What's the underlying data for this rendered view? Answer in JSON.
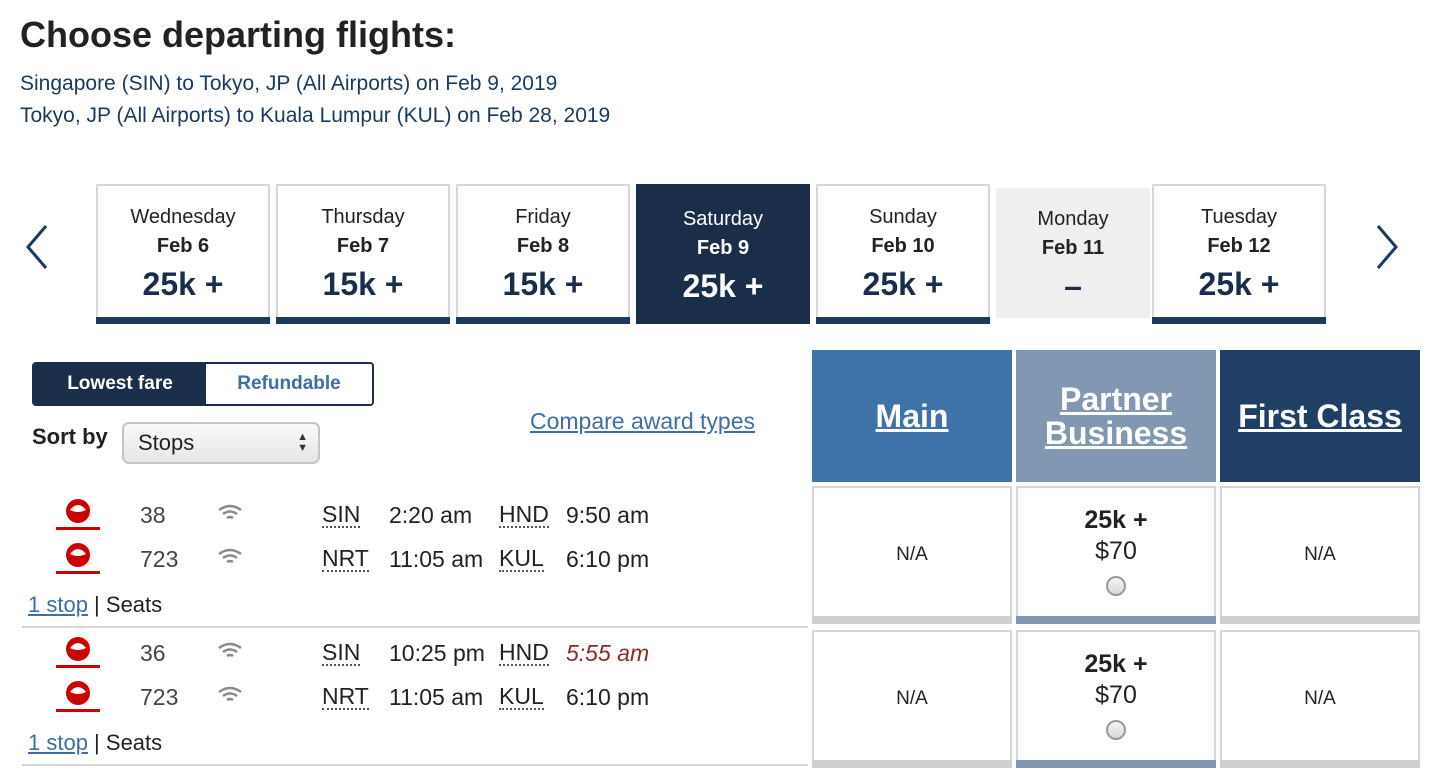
{
  "page": {
    "title": "Choose departing flights:",
    "routes": [
      "Singapore (SIN) to Tokyo, JP (All Airports) on Feb 9, 2019",
      "Tokyo, JP (All Airports) to Kuala Lumpur (KUL) on Feb 28, 2019"
    ]
  },
  "calendar": {
    "prev_icon": "chevron-left-icon",
    "next_icon": "chevron-right-icon",
    "days": [
      {
        "weekday": "Wednesday",
        "date": "Feb 6",
        "price": "25k +"
      },
      {
        "weekday": "Thursday",
        "date": "Feb 7",
        "price": "15k +"
      },
      {
        "weekday": "Friday",
        "date": "Feb 8",
        "price": "15k +"
      },
      {
        "weekday": "Saturday",
        "date": "Feb 9",
        "price": "25k +",
        "selected": true
      },
      {
        "weekday": "Sunday",
        "date": "Feb 10",
        "price": "25k +"
      },
      {
        "weekday": "Monday",
        "date": "Feb 11",
        "price": "–",
        "available": false
      },
      {
        "weekday": "Tuesday",
        "date": "Feb 12",
        "price": "25k +"
      }
    ]
  },
  "filters": {
    "fare_toggle": [
      "Lowest fare",
      "Refundable"
    ],
    "fare_selected": "Lowest fare",
    "sort_label": "Sort by",
    "sort_value": "Stops",
    "compare_link": "Compare award types"
  },
  "cabins": {
    "main": "Main",
    "partner": "Partner Business",
    "first": "First Class"
  },
  "flights": [
    {
      "legs": [
        {
          "airline_icon": "japan-airlines-logo-icon",
          "flight": "38",
          "wifi_icon": "wifi-icon",
          "from": "SIN",
          "dep": "2:20 am",
          "to": "HND",
          "arr": "9:50 am",
          "next_day": false
        },
        {
          "airline_icon": "japan-airlines-logo-icon",
          "flight": "723",
          "wifi_icon": "wifi-icon",
          "from": "NRT",
          "dep": "11:05 am",
          "to": "KUL",
          "arr": "6:10 pm",
          "next_day": false
        }
      ],
      "stops": "1 stop",
      "seats": "Seats",
      "fares": {
        "main": "N/A",
        "partner": {
          "miles": "25k +",
          "tax": "$70"
        },
        "first": "N/A"
      }
    },
    {
      "legs": [
        {
          "airline_icon": "japan-airlines-logo-icon",
          "flight": "36",
          "wifi_icon": "wifi-icon",
          "from": "SIN",
          "dep": "10:25 pm",
          "to": "HND",
          "arr": "5:55 am",
          "next_day": true
        },
        {
          "airline_icon": "japan-airlines-logo-icon",
          "flight": "723",
          "wifi_icon": "wifi-icon",
          "from": "NRT",
          "dep": "11:05 am",
          "to": "KUL",
          "arr": "6:10 pm",
          "next_day": false
        }
      ],
      "stops": "1 stop",
      "seats": "Seats",
      "fares": {
        "main": "N/A",
        "partner": {
          "miles": "25k +",
          "tax": "$70"
        },
        "first": "N/A"
      }
    }
  ],
  "colors": {
    "navy": "#1a2e4a",
    "main_cabin": "#3e73a8",
    "partner_cabin": "#8297b1",
    "first_cabin": "#1f3f64",
    "link": "#3d6ea5",
    "late_arrival": "#8b2a2a"
  }
}
